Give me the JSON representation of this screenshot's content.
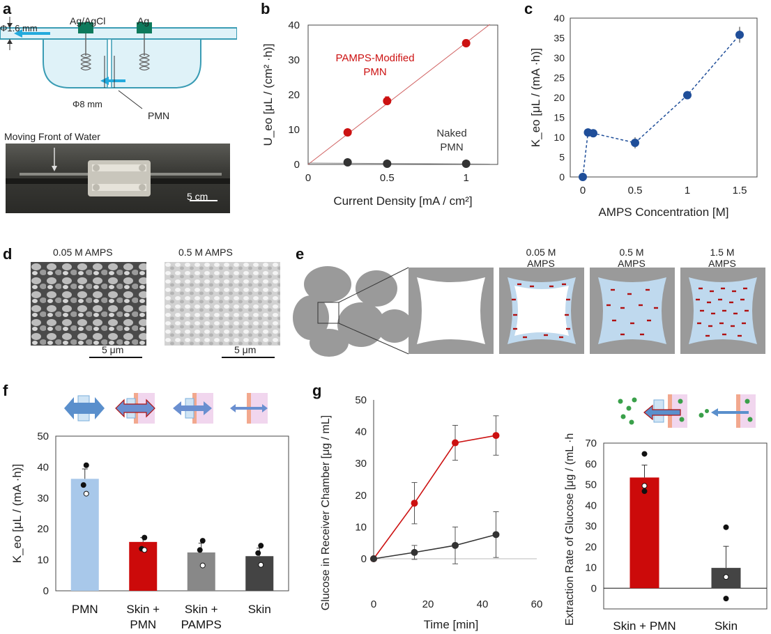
{
  "panels": {
    "a": {
      "letter": "a",
      "electrode_left": "Ag/AgCl",
      "electrode_right": "Ag",
      "tube_diameter": "Φ1.6 mm",
      "chamber_diameter": "Φ8 mm",
      "pmn": "PMN",
      "photo_caption": "Moving Front of Water",
      "scale": "5 cm"
    },
    "b": {
      "letter": "b"
    },
    "c": {
      "letter": "c"
    },
    "d": {
      "letter": "d",
      "img1_label": "0.05 M AMPS",
      "img2_label": "0.5 M AMPS",
      "scale1": "5 μm",
      "scale2": "5 μm"
    },
    "e": {
      "letter": "e",
      "labels": [
        {
          "line1": "0.05 M",
          "line2": "AMPS"
        },
        {
          "line1": "0.5 M",
          "line2": "AMPS"
        },
        {
          "line1": "1.5 M",
          "line2": "AMPS"
        }
      ]
    },
    "f": {
      "letter": "f"
    },
    "g": {
      "letter": "g"
    }
  },
  "chart_data": [
    {
      "id": "b",
      "type": "scatter",
      "xlabel": "Current Density [mA / cm²]",
      "ylabel": "U_eo [μL / (cm² ·h)]",
      "xlim": [
        0,
        1.2
      ],
      "ylim": [
        0,
        40
      ],
      "xticks": [
        "0",
        "0.5",
        "1"
      ],
      "yticks": [
        "0",
        "10",
        "20",
        "30",
        "40"
      ],
      "series": [
        {
          "name": "PAMPS-Modified PMN",
          "color": "#cc1111",
          "x": [
            0.25,
            0.5,
            1.0
          ],
          "y": [
            9.2,
            18.2,
            34.8
          ],
          "err": [
            0.4,
            1.2,
            1.0
          ]
        },
        {
          "name": "Naked PMN",
          "color": "#333333",
          "x": [
            0.25,
            0.5,
            1.0
          ],
          "y": [
            0.6,
            0.2,
            0.2
          ],
          "err": [
            0,
            0,
            0
          ]
        }
      ],
      "annotations": [
        {
          "line1": "PAMPS-Modified",
          "line2": "PMN"
        },
        {
          "line1": "Naked",
          "line2": "PMN"
        }
      ]
    },
    {
      "id": "c",
      "type": "line",
      "xlabel": "AMPS Concentration [M]",
      "ylabel": "K_eo [μL / (mA ·h)]",
      "xlim": [
        0,
        1.6
      ],
      "ylim": [
        0,
        40
      ],
      "xticks": [
        "0",
        "0.5",
        "1",
        "1.5"
      ],
      "yticks": [
        "0",
        "5",
        "10",
        "15",
        "20",
        "25",
        "30",
        "35",
        "40"
      ],
      "series": [
        {
          "name": "PAMPS-Modified PMN",
          "color": "#1f4e99",
          "x": [
            0,
            0.05,
            0.1,
            0.5,
            1.0,
            1.5
          ],
          "y": [
            0,
            11.2,
            11.0,
            8.6,
            20.6,
            35.8
          ],
          "err": [
            0,
            0.4,
            0.4,
            1.4,
            1.0,
            2.0
          ]
        }
      ]
    },
    {
      "id": "f",
      "type": "bar",
      "ylabel": "K_eo [μL / (mA ·h)]",
      "ylim": [
        0,
        50
      ],
      "yticks": [
        "0",
        "10",
        "20",
        "30",
        "40",
        "50"
      ],
      "categories": [
        [
          "PMN"
        ],
        [
          "Skin +",
          "PMN"
        ],
        [
          "Skin +",
          "PAMPS"
        ],
        [
          "Skin"
        ]
      ],
      "values": [
        36.2,
        15.8,
        12.4,
        11.2
      ],
      "errors": [
        3.2,
        1.4,
        3.0,
        2.6
      ],
      "colors": [
        "#a8c8ea",
        "#cc0a0a",
        "#888888",
        "#444444"
      ],
      "points": [
        [
          40.6,
          34.2,
          31.4
        ],
        [
          17.2,
          13.6,
          13.2
        ],
        [
          16.2,
          13.2,
          8.2
        ],
        [
          14.6,
          12.2,
          8.4
        ]
      ]
    },
    {
      "id": "g_time",
      "type": "line",
      "xlabel": "Time [min]",
      "ylabel": "Glucose in Receiver Chamber [μg / mL]",
      "xlim": [
        0,
        60
      ],
      "ylim": [
        0,
        50
      ],
      "xticks": [
        "0",
        "20",
        "40",
        "60"
      ],
      "yticks": [
        "0",
        "10",
        "20",
        "30",
        "40",
        "50"
      ],
      "series": [
        {
          "name": "Skin + PMN",
          "color": "#cc1111",
          "x": [
            0,
            15,
            30,
            45
          ],
          "y": [
            0,
            17.5,
            36.5,
            38.8
          ],
          "err": [
            0,
            6.5,
            5.5,
            6.2
          ]
        },
        {
          "name": "Skin",
          "color": "#333333",
          "x": [
            0,
            15,
            30,
            45
          ],
          "y": [
            0,
            2.0,
            4.2,
            7.6
          ],
          "err": [
            0,
            2.2,
            5.8,
            7.2
          ]
        }
      ]
    },
    {
      "id": "g_bar",
      "type": "bar",
      "ylabel": "Extraction Rate of Glucose [μg / (mL ·h)]",
      "ylim": [
        -10,
        70
      ],
      "yticks": [
        "0",
        "10",
        "20",
        "30",
        "40",
        "50",
        "60",
        "70"
      ],
      "categories": [
        "Skin + PMN",
        "Skin"
      ],
      "values": [
        53.4,
        9.8
      ],
      "errors": [
        6.0,
        10.4
      ],
      "colors": [
        "#cc0a0a",
        "#444444"
      ],
      "points": [
        [
          64.8,
          49.4,
          46.8
        ],
        [
          29.4,
          5.4,
          -5.0
        ]
      ]
    }
  ]
}
